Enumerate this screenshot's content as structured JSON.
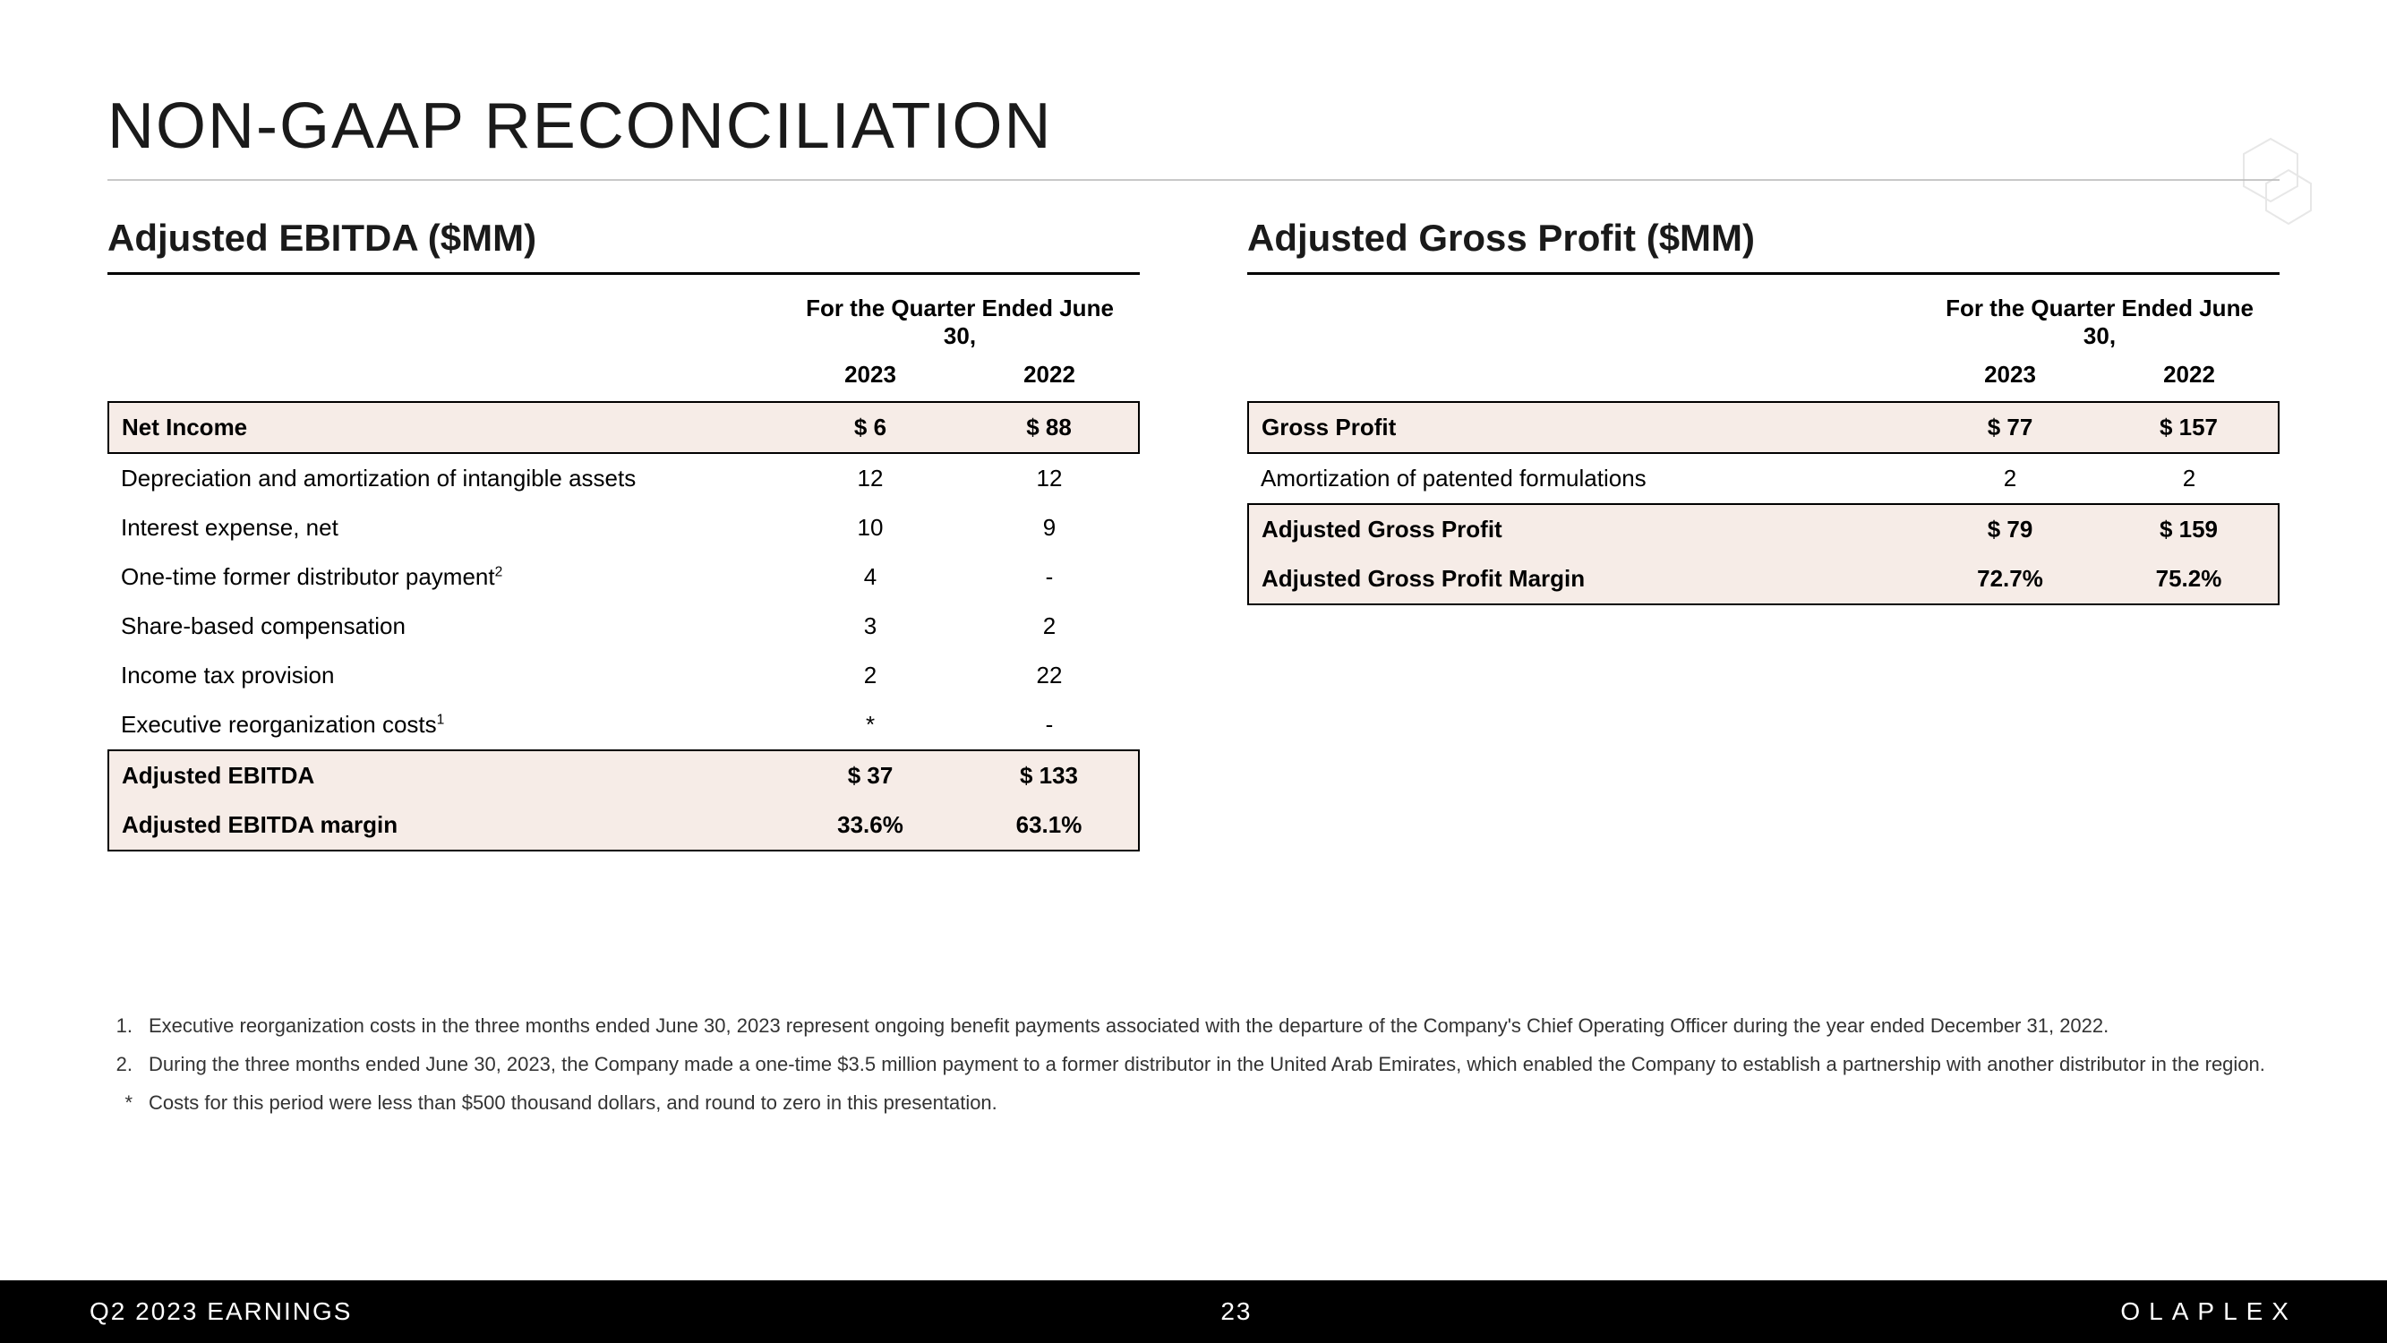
{
  "title": "NON-GAAP RECONCILIATION",
  "left": {
    "heading": "Adjusted EBITDA ($MM)",
    "period_header": "For the Quarter Ended June 30,",
    "years": [
      "2023",
      "2022"
    ],
    "rows": [
      {
        "label": "Net Income",
        "vals": [
          "$ 6",
          "$ 88"
        ],
        "style": "bold highlight boxed"
      },
      {
        "label": "Depreciation and amortization of intangible assets",
        "vals": [
          "12",
          "12"
        ],
        "style": ""
      },
      {
        "label": "Interest expense, net",
        "vals": [
          "10",
          "9"
        ],
        "style": ""
      },
      {
        "label": "One-time former distributor payment",
        "sup": "2",
        "vals": [
          "4",
          "-"
        ],
        "style": ""
      },
      {
        "label": "Share-based compensation",
        "vals": [
          "3",
          "2"
        ],
        "style": ""
      },
      {
        "label": "Income tax provision",
        "vals": [
          "2",
          "22"
        ],
        "style": ""
      },
      {
        "label": "Executive reorganization costs",
        "sup": "1",
        "vals": [
          "*",
          "-"
        ],
        "style": ""
      },
      {
        "label": "Adjusted EBITDA",
        "vals": [
          "$ 37",
          "$ 133"
        ],
        "style": "bold highlight boxed-top boxed-mid"
      },
      {
        "label": "Adjusted EBITDA margin",
        "vals": [
          "33.6%",
          "63.1%"
        ],
        "style": "bold highlight boxed-bottom boxed-mid"
      }
    ]
  },
  "right": {
    "heading": "Adjusted Gross Profit ($MM)",
    "period_header": "For the Quarter Ended June 30,",
    "years": [
      "2023",
      "2022"
    ],
    "rows": [
      {
        "label": "Gross Profit",
        "vals": [
          "$ 77",
          "$ 157"
        ],
        "style": "bold highlight boxed"
      },
      {
        "label": "Amortization of patented formulations",
        "vals": [
          "2",
          "2"
        ],
        "style": ""
      },
      {
        "label": "Adjusted Gross Profit",
        "vals": [
          "$ 79",
          "$ 159"
        ],
        "style": "bold highlight boxed-top boxed-mid"
      },
      {
        "label": "Adjusted Gross Profit Margin",
        "vals": [
          "72.7%",
          "75.2%"
        ],
        "style": "bold highlight boxed-bottom boxed-mid"
      }
    ]
  },
  "footnotes": [
    {
      "marker": "1.",
      "text": "Executive reorganization costs in the three months ended June 30, 2023 represent ongoing benefit payments associated with the departure of the Company's Chief Operating Officer during the year ended December 31, 2022."
    },
    {
      "marker": "2.",
      "text": "During the three months ended June 30, 2023, the Company made a one-time $3.5 million payment to a former distributor in the United Arab Emirates, which enabled the Company to establish a partnership with another distributor in the region."
    },
    {
      "marker": "*",
      "text": "Costs for this period were less than $500 thousand dollars, and round to zero in this presentation."
    }
  ],
  "footer": {
    "left": "Q2 2023 EARNINGS",
    "page": "23",
    "brand": "OLAPLEX"
  },
  "colors": {
    "highlight_bg": "#f6ece7",
    "title_color": "#1a1a1a",
    "footer_bg": "#000000",
    "footer_fg": "#ffffff",
    "hr_color": "#c8c8c8"
  }
}
